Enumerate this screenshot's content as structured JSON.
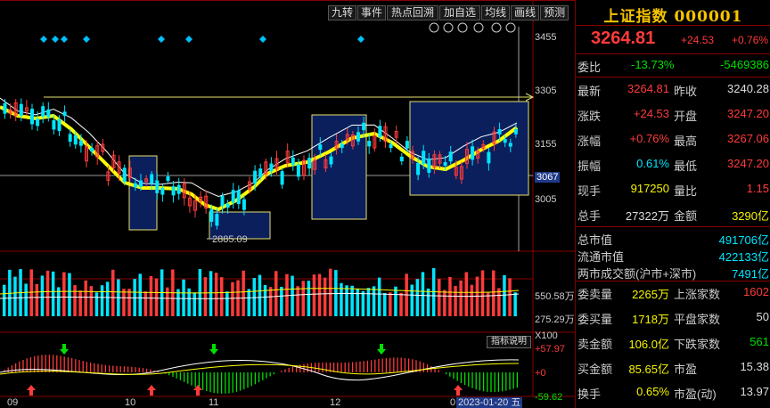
{
  "toolbar": {
    "btns": [
      "九转",
      "事件",
      "热点回溯",
      "加自选",
      "均线",
      "画线",
      "预测"
    ]
  },
  "main_chart": {
    "price_axis": [
      "3455",
      "3305",
      "3155",
      "3067",
      "3005"
    ],
    "low_label": "2885.09",
    "low_value": 2885.09,
    "current_level": 3067,
    "x_labels": [
      "09",
      "10",
      "11",
      "12",
      "0"
    ],
    "date_tag": "2023-01-20 五"
  },
  "volume": {
    "axis": [
      "550.58万",
      "275.29万",
      "X100"
    ]
  },
  "indicator": {
    "button": "指标说明",
    "axis": [
      "+57.97",
      "+0",
      "-59.62"
    ]
  },
  "quote": {
    "title": "上证指数 000001",
    "price": "3264.81",
    "change": "+24.53",
    "pct": "+0.76%",
    "weibi": {
      "label": "委比",
      "v1": "-13.73%",
      "v2": "-5469386"
    },
    "rows": [
      {
        "l1": "最新",
        "v1": "3264.81",
        "l2": "昨收",
        "v2": "3240.28",
        "c1": "r",
        "c2": "w"
      },
      {
        "l1": "涨跌",
        "v1": "+24.53",
        "l2": "开盘",
        "v2": "3247.20",
        "c1": "r",
        "c2": "r"
      },
      {
        "l1": "涨幅",
        "v1": "+0.76%",
        "l2": "最高",
        "v2": "3267.06",
        "c1": "r",
        "c2": "r"
      },
      {
        "l1": "振幅",
        "v1": "0.61%",
        "l2": "最低",
        "v2": "3247.20",
        "c1": "c",
        "c2": "r"
      },
      {
        "l1": "现手",
        "v1": "917250",
        "l2": "量比",
        "v2": "1.15",
        "c1": "y",
        "c2": "r"
      },
      {
        "l1": "总手",
        "v1": "27322万",
        "l2": "金额",
        "v2": "3290亿",
        "c1": "w",
        "c2": "y"
      }
    ],
    "market": [
      {
        "l": "总市值",
        "v": "491706亿"
      },
      {
        "l": "流通市值",
        "v": "422133亿"
      },
      {
        "l": "两市成交额(沪市+深市)",
        "v": "7491亿"
      }
    ],
    "rows2": [
      {
        "l1": "委卖量",
        "v1": "2265万",
        "l2": "上涨家数",
        "v2": "1602",
        "c1": "y",
        "c2": "r"
      },
      {
        "l1": "委买量",
        "v1": "1718万",
        "l2": "平盘家数",
        "v2": "50",
        "c1": "y",
        "c2": "w"
      },
      {
        "l1": "卖金额",
        "v1": "106.0亿",
        "l2": "下跌家数",
        "v2": "561",
        "c1": "y",
        "c2": "g"
      },
      {
        "l1": "买金额",
        "v1": "85.65亿",
        "l2": "市盈",
        "v2": "15.38",
        "c1": "y",
        "c2": "w"
      },
      {
        "l1": "换手",
        "v1": "0.65%",
        "l2": "市盈(动)",
        "v2": "13.97",
        "c1": "y",
        "c2": "w"
      }
    ]
  },
  "colors": {
    "up": "#ff3b3b",
    "down": "#00e5ff",
    "ma": "#ffff00",
    "box": "#0a1f5c",
    "boxBorder": "#e8e070",
    "divider": "#8a0000"
  }
}
